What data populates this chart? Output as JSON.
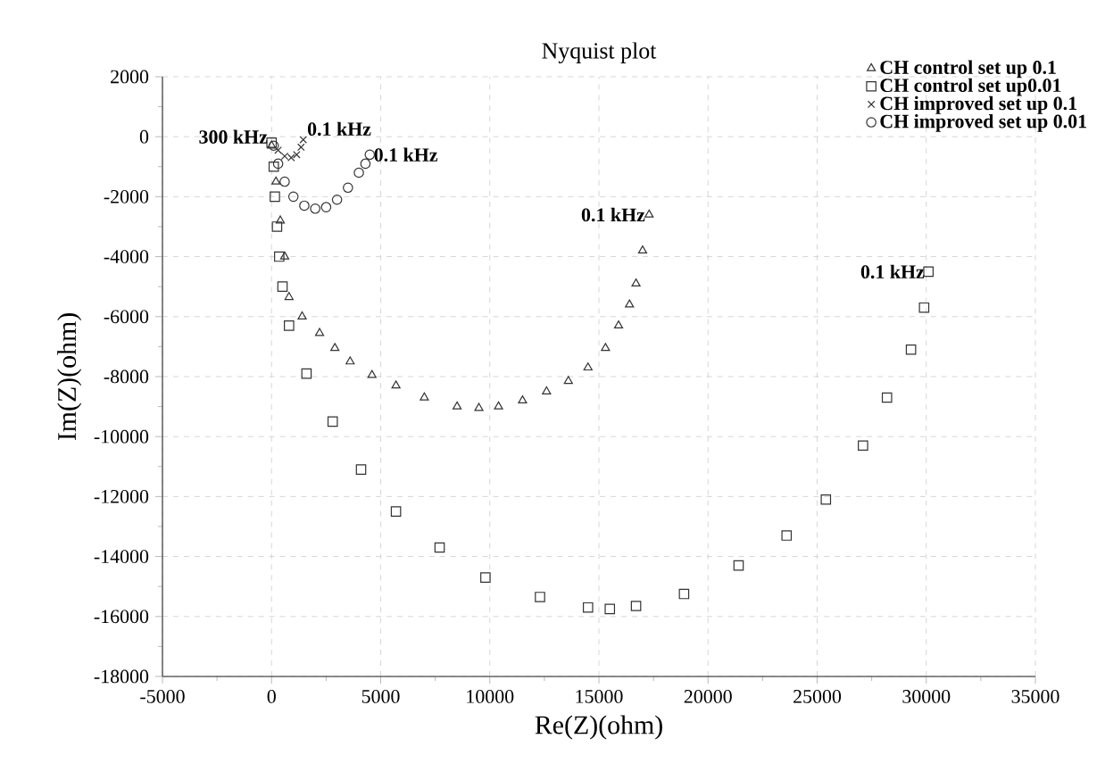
{
  "chart_data": {
    "type": "scatter",
    "title": "Nyquist plot",
    "xlabel": "Re(Z)(ohm)",
    "ylabel": "Im(Z)(ohm)",
    "xlim": [
      -5000,
      35000
    ],
    "ylim": [
      -18000,
      2000
    ],
    "xticks": [
      -5000,
      0,
      5000,
      10000,
      15000,
      20000,
      25000,
      30000,
      35000
    ],
    "yticks": [
      2000,
      0,
      -2000,
      -4000,
      -6000,
      -8000,
      -10000,
      -12000,
      -14000,
      -16000,
      -18000
    ],
    "grid": true,
    "legend": "top right",
    "series": [
      {
        "name": "CH control set up 0.1",
        "color": "#333333",
        "marker": "triangle",
        "x": [
          0,
          200,
          400,
          600,
          800,
          1400,
          2200,
          2900,
          3600,
          4600,
          5700,
          7000,
          8500,
          9500,
          10400,
          11500,
          12600,
          13600,
          14500,
          15300,
          15900,
          16400,
          16700,
          17000,
          17300
        ],
        "values": [
          -300,
          -1500,
          -2800,
          -4000,
          -5350,
          -6000,
          -6550,
          -7050,
          -7500,
          -7950,
          -8300,
          -8700,
          -9000,
          -9050,
          -9000,
          -8800,
          -8500,
          -8150,
          -7700,
          -7050,
          -6300,
          -5600,
          -4900,
          -3800,
          -2600
        ]
      },
      {
        "name": "CH control set up0.01",
        "color": "#333333",
        "marker": "square",
        "x": [
          0,
          100,
          150,
          250,
          350,
          500,
          800,
          1600,
          2800,
          4100,
          5700,
          7700,
          9800,
          12300,
          14500,
          15500,
          16700,
          18900,
          21400,
          23600,
          25400,
          27100,
          28200,
          29300,
          29900,
          30100
        ],
        "values": [
          -200,
          -1000,
          -2000,
          -3000,
          -4000,
          -5000,
          -6300,
          -7900,
          -9500,
          -11100,
          -12500,
          -13700,
          -14700,
          -15350,
          -15700,
          -15750,
          -15650,
          -15250,
          -14300,
          -13300,
          -12100,
          -10300,
          -8700,
          -7100,
          -5700,
          -4500
        ]
      },
      {
        "name": "CH improved set up 0.1",
        "color": "#333333",
        "marker": "cross",
        "x": [
          300,
          600,
          900,
          1150,
          1350,
          1450
        ],
        "values": [
          -450,
          -650,
          -700,
          -600,
          -350,
          -100
        ]
      },
      {
        "name": "CH improved set up 0.01",
        "color": "#333333",
        "marker": "circle",
        "x": [
          100,
          300,
          600,
          1000,
          1500,
          2000,
          2500,
          3000,
          3500,
          4000,
          4300,
          4500
        ],
        "values": [
          -300,
          -900,
          -1500,
          -2000,
          -2300,
          -2400,
          -2350,
          -2100,
          -1700,
          -1200,
          -900,
          -600
        ]
      }
    ],
    "annotations": [
      {
        "text": "300 kHz",
        "x": 0,
        "y": 0
      },
      {
        "text": "0.1 kHz",
        "x": 1450,
        "y": -100
      },
      {
        "text": "0.1 kHz",
        "x": 4500,
        "y": -600
      },
      {
        "text": "0.1 kHz",
        "x": 17300,
        "y": -2600
      },
      {
        "text": "0.1 kHz",
        "x": 30100,
        "y": -4500
      }
    ]
  }
}
